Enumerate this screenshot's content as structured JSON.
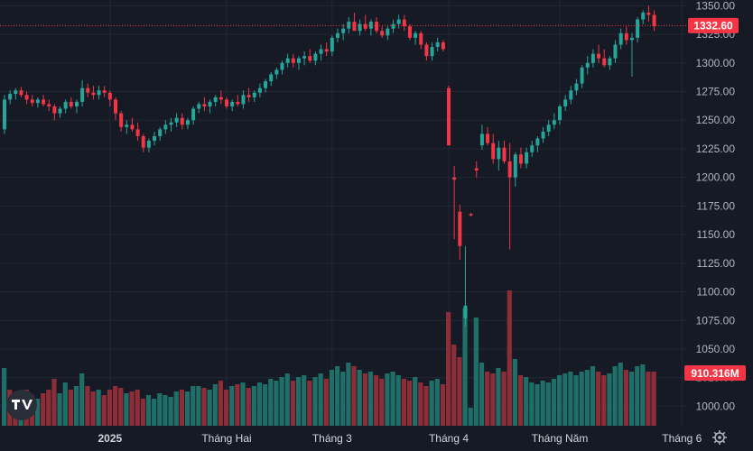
{
  "chart_data": {
    "type": "candlestick",
    "title": "",
    "xlabel": "",
    "ylabel": "",
    "ylim": [
      983,
      1355
    ],
    "grid": true,
    "y_ticks": [
      "1350.00",
      "1325.00",
      "1300.00",
      "1275.00",
      "1250.00",
      "1225.00",
      "1200.00",
      "1175.00",
      "1150.00",
      "1125.00",
      "1100.00",
      "1075.00",
      "1050.00",
      "1025.00",
      "1000.00"
    ],
    "x_ticks": [
      {
        "label": "2025",
        "bar": 19
      },
      {
        "label": "Tháng Hai",
        "bar": 40
      },
      {
        "label": "Tháng 3",
        "bar": 59
      },
      {
        "label": "Tháng 4",
        "bar": 80
      },
      {
        "label": "Tháng Năm",
        "bar": 100
      },
      {
        "label": "Tháng 6",
        "bar": 122
      }
    ],
    "last_price": "1332.60",
    "last_volume": "910.316M",
    "colors": {
      "up": "#26a69a",
      "down": "#f23645",
      "up_volume": "#1f6e68",
      "down_volume": "#8c2d38",
      "last_line": "#f23645",
      "grid": "#232733",
      "background": "#161a25"
    },
    "ohlc_start": 1242,
    "ohlc": [
      [
        1242,
        1272,
        1238,
        1268
      ],
      [
        1268,
        1276,
        1264,
        1273
      ],
      [
        1273,
        1278,
        1268,
        1276
      ],
      [
        1276,
        1279,
        1270,
        1272
      ],
      [
        1272,
        1275,
        1264,
        1268
      ],
      [
        1268,
        1272,
        1262,
        1265
      ],
      [
        1265,
        1270,
        1261,
        1268
      ],
      [
        1268,
        1272,
        1262,
        1264
      ],
      [
        1264,
        1268,
        1258,
        1262
      ],
      [
        1262,
        1264,
        1250,
        1256
      ],
      [
        1256,
        1262,
        1252,
        1260
      ],
      [
        1260,
        1268,
        1256,
        1266
      ],
      [
        1266,
        1270,
        1260,
        1262
      ],
      [
        1262,
        1268,
        1256,
        1266
      ],
      [
        1266,
        1285,
        1262,
        1278
      ],
      [
        1278,
        1282,
        1270,
        1274
      ],
      [
        1274,
        1280,
        1268,
        1272
      ],
      [
        1272,
        1280,
        1268,
        1276
      ],
      [
        1276,
        1280,
        1270,
        1274
      ],
      [
        1274,
        1276,
        1262,
        1268
      ],
      [
        1268,
        1270,
        1250,
        1256
      ],
      [
        1256,
        1258,
        1240,
        1244
      ],
      [
        1244,
        1250,
        1238,
        1246
      ],
      [
        1246,
        1252,
        1240,
        1242
      ],
      [
        1242,
        1248,
        1232,
        1236
      ],
      [
        1236,
        1238,
        1222,
        1226
      ],
      [
        1226,
        1234,
        1222,
        1232
      ],
      [
        1232,
        1240,
        1228,
        1236
      ],
      [
        1236,
        1244,
        1232,
        1242
      ],
      [
        1242,
        1250,
        1238,
        1246
      ],
      [
        1246,
        1252,
        1240,
        1248
      ],
      [
        1248,
        1256,
        1244,
        1252
      ],
      [
        1252,
        1256,
        1242,
        1246
      ],
      [
        1246,
        1252,
        1242,
        1250
      ],
      [
        1250,
        1262,
        1246,
        1260
      ],
      [
        1260,
        1266,
        1256,
        1264
      ],
      [
        1264,
        1270,
        1258,
        1262
      ],
      [
        1262,
        1268,
        1256,
        1266
      ],
      [
        1266,
        1272,
        1262,
        1270
      ],
      [
        1270,
        1276,
        1264,
        1268
      ],
      [
        1268,
        1270,
        1260,
        1262
      ],
      [
        1262,
        1268,
        1258,
        1266
      ],
      [
        1266,
        1272,
        1262,
        1264
      ],
      [
        1264,
        1276,
        1260,
        1272
      ],
      [
        1272,
        1278,
        1266,
        1270
      ],
      [
        1270,
        1276,
        1266,
        1274
      ],
      [
        1274,
        1282,
        1270,
        1278
      ],
      [
        1278,
        1286,
        1274,
        1284
      ],
      [
        1284,
        1292,
        1280,
        1290
      ],
      [
        1290,
        1296,
        1286,
        1294
      ],
      [
        1294,
        1302,
        1290,
        1300
      ],
      [
        1300,
        1308,
        1296,
        1304
      ],
      [
        1304,
        1308,
        1296,
        1300
      ],
      [
        1300,
        1306,
        1294,
        1304
      ],
      [
        1304,
        1310,
        1298,
        1306
      ],
      [
        1306,
        1312,
        1300,
        1302
      ],
      [
        1302,
        1310,
        1298,
        1308
      ],
      [
        1308,
        1316,
        1302,
        1312
      ],
      [
        1312,
        1318,
        1306,
        1310
      ],
      [
        1310,
        1324,
        1306,
        1322
      ],
      [
        1322,
        1330,
        1318,
        1326
      ],
      [
        1326,
        1334,
        1320,
        1330
      ],
      [
        1330,
        1340,
        1326,
        1336
      ],
      [
        1336,
        1344,
        1330,
        1328
      ],
      [
        1328,
        1338,
        1324,
        1334
      ],
      [
        1334,
        1342,
        1328,
        1330
      ],
      [
        1330,
        1338,
        1324,
        1336
      ],
      [
        1336,
        1340,
        1326,
        1328
      ],
      [
        1328,
        1332,
        1322,
        1324
      ],
      [
        1324,
        1332,
        1320,
        1330
      ],
      [
        1330,
        1338,
        1326,
        1334
      ],
      [
        1334,
        1342,
        1330,
        1338
      ],
      [
        1338,
        1342,
        1328,
        1332
      ],
      [
        1332,
        1334,
        1320,
        1322
      ],
      [
        1322,
        1328,
        1316,
        1326
      ],
      [
        1326,
        1328,
        1312,
        1316
      ],
      [
        1316,
        1318,
        1302,
        1306
      ],
      [
        1306,
        1318,
        1302,
        1314
      ],
      [
        1314,
        1322,
        1310,
        1318
      ],
      [
        1318,
        1320,
        1310,
        1312
      ],
      [
        1278,
        1280,
        1228,
        1228
      ],
      [
        1200,
        1210,
        1146,
        1198
      ],
      [
        1170,
        1176,
        1128,
        1140
      ],
      [
        1077,
        1140,
        1070,
        1088
      ],
      [
        1168,
        1169,
        1166,
        1167
      ],
      [
        1208,
        1214,
        1200,
        1206
      ],
      [
        1228,
        1246,
        1224,
        1238
      ],
      [
        1238,
        1244,
        1228,
        1230
      ],
      [
        1230,
        1238,
        1212,
        1216
      ],
      [
        1216,
        1232,
        1206,
        1226
      ],
      [
        1226,
        1232,
        1212,
        1214
      ],
      [
        1214,
        1230,
        1137,
        1200
      ],
      [
        1200,
        1222,
        1192,
        1220
      ],
      [
        1220,
        1226,
        1208,
        1212
      ],
      [
        1212,
        1226,
        1208,
        1222
      ],
      [
        1222,
        1232,
        1218,
        1228
      ],
      [
        1228,
        1236,
        1222,
        1234
      ],
      [
        1234,
        1244,
        1230,
        1240
      ],
      [
        1240,
        1250,
        1236,
        1246
      ],
      [
        1246,
        1256,
        1242,
        1250
      ],
      [
        1250,
        1264,
        1246,
        1262
      ],
      [
        1262,
        1272,
        1258,
        1268
      ],
      [
        1268,
        1280,
        1264,
        1276
      ],
      [
        1276,
        1286,
        1272,
        1282
      ],
      [
        1282,
        1298,
        1278,
        1296
      ],
      [
        1296,
        1306,
        1290,
        1300
      ],
      [
        1300,
        1312,
        1296,
        1308
      ],
      [
        1308,
        1316,
        1300,
        1304
      ],
      [
        1304,
        1312,
        1296,
        1298
      ],
      [
        1298,
        1306,
        1294,
        1304
      ],
      [
        1304,
        1320,
        1300,
        1316
      ],
      [
        1316,
        1330,
        1312,
        1326
      ],
      [
        1326,
        1332,
        1316,
        1320
      ],
      [
        1320,
        1326,
        1288,
        1322
      ],
      [
        1322,
        1340,
        1318,
        1338
      ],
      [
        1338,
        1346,
        1334,
        1344
      ],
      [
        1344,
        1350,
        1336,
        1342
      ],
      [
        1342,
        1346,
        1328,
        1332
      ]
    ],
    "volume": [
      [
        64,
        "u"
      ],
      [
        40,
        "d"
      ],
      [
        28,
        "d"
      ],
      [
        32,
        "u"
      ],
      [
        40,
        "d"
      ],
      [
        34,
        "d"
      ],
      [
        30,
        "u"
      ],
      [
        36,
        "d"
      ],
      [
        40,
        "d"
      ],
      [
        52,
        "d"
      ],
      [
        36,
        "u"
      ],
      [
        48,
        "u"
      ],
      [
        40,
        "d"
      ],
      [
        44,
        "u"
      ],
      [
        58,
        "u"
      ],
      [
        44,
        "d"
      ],
      [
        38,
        "d"
      ],
      [
        40,
        "u"
      ],
      [
        34,
        "d"
      ],
      [
        40,
        "d"
      ],
      [
        44,
        "d"
      ],
      [
        42,
        "d"
      ],
      [
        36,
        "u"
      ],
      [
        38,
        "d"
      ],
      [
        40,
        "d"
      ],
      [
        30,
        "d"
      ],
      [
        34,
        "u"
      ],
      [
        30,
        "u"
      ],
      [
        36,
        "u"
      ],
      [
        34,
        "u"
      ],
      [
        32,
        "u"
      ],
      [
        38,
        "u"
      ],
      [
        40,
        "d"
      ],
      [
        38,
        "u"
      ],
      [
        44,
        "u"
      ],
      [
        44,
        "u"
      ],
      [
        42,
        "d"
      ],
      [
        40,
        "u"
      ],
      [
        46,
        "u"
      ],
      [
        50,
        "d"
      ],
      [
        40,
        "d"
      ],
      [
        44,
        "u"
      ],
      [
        46,
        "d"
      ],
      [
        48,
        "u"
      ],
      [
        42,
        "d"
      ],
      [
        44,
        "u"
      ],
      [
        48,
        "u"
      ],
      [
        46,
        "u"
      ],
      [
        52,
        "u"
      ],
      [
        50,
        "u"
      ],
      [
        54,
        "u"
      ],
      [
        58,
        "u"
      ],
      [
        50,
        "d"
      ],
      [
        54,
        "u"
      ],
      [
        56,
        "u"
      ],
      [
        50,
        "d"
      ],
      [
        54,
        "u"
      ],
      [
        58,
        "u"
      ],
      [
        52,
        "d"
      ],
      [
        62,
        "u"
      ],
      [
        66,
        "u"
      ],
      [
        60,
        "u"
      ],
      [
        70,
        "u"
      ],
      [
        66,
        "d"
      ],
      [
        62,
        "u"
      ],
      [
        58,
        "d"
      ],
      [
        60,
        "u"
      ],
      [
        56,
        "d"
      ],
      [
        52,
        "d"
      ],
      [
        58,
        "u"
      ],
      [
        60,
        "u"
      ],
      [
        56,
        "u"
      ],
      [
        52,
        "d"
      ],
      [
        50,
        "d"
      ],
      [
        54,
        "u"
      ],
      [
        48,
        "d"
      ],
      [
        44,
        "d"
      ],
      [
        50,
        "u"
      ],
      [
        52,
        "u"
      ],
      [
        46,
        "d"
      ],
      [
        126,
        "d"
      ],
      [
        90,
        "d"
      ],
      [
        76,
        "d"
      ],
      [
        130,
        "u"
      ],
      [
        20,
        "u"
      ],
      [
        120,
        "u"
      ],
      [
        70,
        "u"
      ],
      [
        60,
        "d"
      ],
      [
        58,
        "d"
      ],
      [
        64,
        "u"
      ],
      [
        60,
        "d"
      ],
      [
        150,
        "d"
      ],
      [
        74,
        "u"
      ],
      [
        56,
        "d"
      ],
      [
        54,
        "u"
      ],
      [
        48,
        "u"
      ],
      [
        46,
        "u"
      ],
      [
        50,
        "u"
      ],
      [
        48,
        "u"
      ],
      [
        52,
        "u"
      ],
      [
        56,
        "u"
      ],
      [
        58,
        "u"
      ],
      [
        60,
        "u"
      ],
      [
        56,
        "u"
      ],
      [
        60,
        "u"
      ],
      [
        62,
        "u"
      ],
      [
        66,
        "u"
      ],
      [
        60,
        "d"
      ],
      [
        56,
        "d"
      ],
      [
        58,
        "u"
      ],
      [
        66,
        "u"
      ],
      [
        70,
        "u"
      ],
      [
        62,
        "d"
      ],
      [
        60,
        "u"
      ],
      [
        66,
        "u"
      ],
      [
        68,
        "u"
      ],
      [
        60,
        "d"
      ],
      [
        60,
        "d"
      ]
    ]
  }
}
